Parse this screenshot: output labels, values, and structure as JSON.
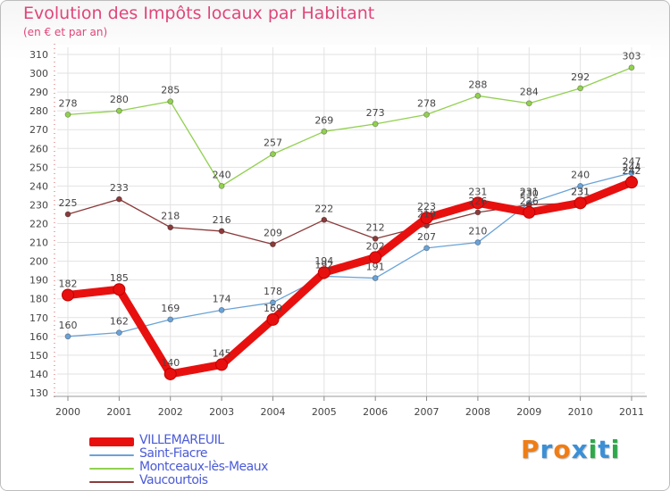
{
  "title": "Evolution des Impôts locaux par Habitant",
  "subtitle": "(en € et par an)",
  "logo": {
    "text": "Proxiti",
    "colors": [
      "#ef7d16",
      "#3b8fd6",
      "#ef7d16",
      "#3b8fd6",
      "#2ea84a",
      "#3b8fd6",
      "#2ea84a"
    ]
  },
  "chart_data": {
    "type": "line",
    "title": "Evolution des Impôts locaux par Habitant",
    "subtitle": "(en € et par an)",
    "xlabel": "",
    "ylabel": "",
    "categories": [
      "2000",
      "2001",
      "2002",
      "2003",
      "2004",
      "2005",
      "2006",
      "2007",
      "2008",
      "2009",
      "2010",
      "2011"
    ],
    "ylim": [
      130,
      310
    ],
    "ytick_step": 10,
    "grid": true,
    "legend_position": "bottom-left",
    "series": [
      {
        "name": "VILLEMAREUIL",
        "color": "#e8100f",
        "emphasis": true,
        "values": [
          182,
          185,
          140,
          145,
          169,
          194,
          202,
          223,
          231,
          226,
          231,
          242
        ],
        "labels": [
          "182",
          "185",
          "140",
          "145",
          "169",
          "194",
          "202",
          "223",
          "231",
          "226",
          "231",
          "242"
        ]
      },
      {
        "name": "Saint-Fiacre",
        "color": "#6aa3d8",
        "emphasis": false,
        "values": [
          160,
          162,
          169,
          174,
          178,
          192,
          191,
          207,
          210,
          231,
          240,
          247
        ],
        "labels": [
          "160",
          "162",
          "169",
          "174",
          "178",
          "192",
          "191",
          "207",
          "210",
          "231",
          "240",
          "247"
        ]
      },
      {
        "name": "Montceaux-lès-Meaux",
        "color": "#92d050",
        "emphasis": false,
        "values": [
          278,
          280,
          285,
          240,
          257,
          269,
          273,
          278,
          288,
          284,
          292,
          303
        ],
        "labels": [
          "278",
          "280",
          "285",
          "240",
          "257",
          "269",
          "273",
          "278",
          "288",
          "284",
          "292",
          "303"
        ]
      },
      {
        "name": "Vaucourtois",
        "color": "#8b3a3a",
        "emphasis": false,
        "values": [
          225,
          233,
          218,
          216,
          209,
          222,
          212,
          219,
          226,
          230,
          231,
          244
        ],
        "labels": [
          "225",
          "233",
          "218",
          "216",
          "209",
          "222",
          "212",
          "219",
          "226",
          "230",
          "231",
          "244"
        ]
      }
    ]
  }
}
